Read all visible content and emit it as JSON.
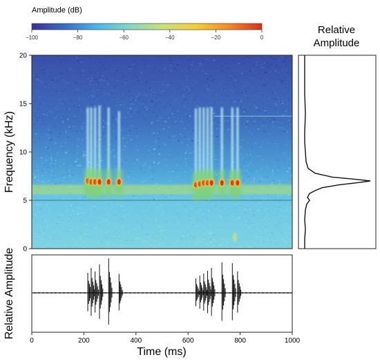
{
  "colorbar": {
    "title": "Amplitude (dB)",
    "range": [
      -100,
      0
    ],
    "ticks": [
      -100,
      -80,
      -60,
      -40,
      -20,
      0
    ],
    "tick_labels": [
      "−100",
      "−80",
      "−60",
      "−40",
      "−20",
      "0"
    ],
    "colors": [
      "#3a3290",
      "#3b6cc4",
      "#4fb6e6",
      "#86d6c2",
      "#c9e079",
      "#f2cf3a",
      "#f08a2a",
      "#d7301f"
    ]
  },
  "right_panel_title": [
    "Relative",
    "Amplitude"
  ],
  "chart_data": [
    {
      "type": "heatmap",
      "name": "spectrogram",
      "xlim": [
        0,
        1000
      ],
      "ylim": [
        0,
        20
      ],
      "ylabel": "Frequency (kHz)",
      "yticks": [
        0,
        5,
        10,
        15,
        20
      ],
      "ytick_labels": [
        "0",
        "5",
        "10",
        "15",
        "20"
      ],
      "background_band_khz": [
        5.6,
        6.6
      ],
      "line_khz": 5.0,
      "pulses": [
        {
          "t": 215,
          "f": 7.0,
          "top": 14.6
        },
        {
          "t": 228,
          "f": 6.9,
          "top": 14.6
        },
        {
          "t": 243,
          "f": 6.9,
          "top": 14.6
        },
        {
          "t": 260,
          "f": 6.9,
          "top": 14.8
        },
        {
          "t": 295,
          "f": 6.9,
          "top": 14.6
        },
        {
          "t": 335,
          "f": 6.9,
          "top": 14.2
        },
        {
          "t": 630,
          "f": 6.6,
          "top": 14.5
        },
        {
          "t": 645,
          "f": 6.7,
          "top": 14.6
        },
        {
          "t": 660,
          "f": 6.8,
          "top": 14.6
        },
        {
          "t": 675,
          "f": 6.8,
          "top": 14.6
        },
        {
          "t": 690,
          "f": 6.8,
          "top": 14.6
        },
        {
          "t": 730,
          "f": 6.8,
          "top": 14.6
        },
        {
          "t": 770,
          "f": 6.8,
          "top": 14.6
        },
        {
          "t": 790,
          "f": 6.8,
          "top": 14.6
        }
      ]
    },
    {
      "type": "line",
      "name": "relative-amplitude-spectrum",
      "ylim": [
        0,
        20
      ],
      "xlim": [
        0,
        1
      ],
      "y": [
        0,
        1,
        2,
        3,
        4,
        4.6,
        5.0,
        5.3,
        5.7,
        6.0,
        6.3,
        6.6,
        6.85,
        7.0,
        7.15,
        7.4,
        7.8,
        8.3,
        9,
        10,
        11,
        12,
        14,
        16,
        18,
        20
      ],
      "x": [
        0.05,
        0.05,
        0.06,
        0.05,
        0.06,
        0.08,
        0.12,
        0.09,
        0.12,
        0.2,
        0.3,
        0.55,
        0.85,
        1.0,
        0.82,
        0.45,
        0.2,
        0.1,
        0.07,
        0.06,
        0.05,
        0.05,
        0.06,
        0.05,
        0.05,
        0.05
      ]
    },
    {
      "type": "line",
      "name": "waveform",
      "xlabel": "Time (ms)",
      "ylabel": "Relative Amplitude",
      "xlim": [
        0,
        1000
      ],
      "xticks": [
        0,
        200,
        400,
        600,
        800,
        1000
      ],
      "xtick_labels": [
        "0",
        "200",
        "400",
        "600",
        "800",
        "1000"
      ],
      "ylim": [
        -1,
        1
      ],
      "pulses": [
        {
          "t": 215,
          "amp": 0.58
        },
        {
          "t": 228,
          "amp": 0.72
        },
        {
          "t": 243,
          "amp": 0.62
        },
        {
          "t": 260,
          "amp": 0.82
        },
        {
          "t": 295,
          "amp": 1.0
        },
        {
          "t": 335,
          "amp": 0.55
        },
        {
          "t": 630,
          "amp": 0.42
        },
        {
          "t": 645,
          "amp": 0.5
        },
        {
          "t": 660,
          "amp": 0.56
        },
        {
          "t": 675,
          "amp": 0.64
        },
        {
          "t": 690,
          "amp": 0.72
        },
        {
          "t": 730,
          "amp": 0.88
        },
        {
          "t": 770,
          "amp": 0.86
        },
        {
          "t": 790,
          "amp": 0.62
        }
      ]
    }
  ]
}
